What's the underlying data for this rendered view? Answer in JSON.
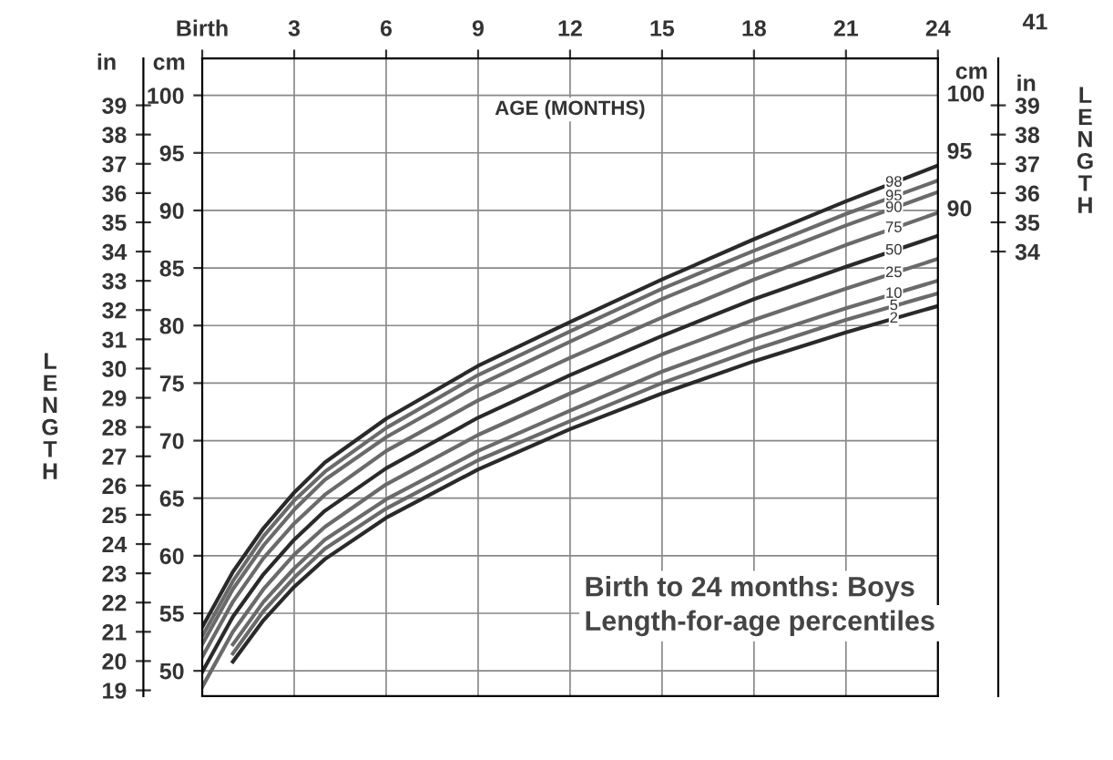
{
  "chart_data": {
    "type": "line",
    "title": "Birth to 24 months: Boys",
    "subtitle": "Length-for-age percentiles",
    "xlabel": "AGE (MONTHS)",
    "ylabel": "cm",
    "y2label": "in",
    "y3label": "in",
    "annotations": [
      "LENGTH",
      "LENGTH",
      "41",
      "cm",
      "100",
      "95",
      "90"
    ],
    "x": [
      0,
      1,
      2,
      3,
      4,
      6,
      9,
      12,
      15,
      18,
      21,
      24
    ],
    "xlim": [
      0,
      24
    ],
    "xticks": [
      {
        "value": 0,
        "label": "Birth"
      },
      3,
      6,
      9,
      12,
      15,
      18,
      21,
      24
    ],
    "ylim": [
      47.8,
      103.2
    ],
    "yticks": [
      50,
      55,
      60,
      65,
      70,
      75,
      80,
      85,
      90,
      95,
      100
    ],
    "y2lim": [
      18.8,
      40.6
    ],
    "y2ticks": [
      19,
      20,
      21,
      22,
      23,
      24,
      25,
      26,
      27,
      28,
      29,
      30,
      31,
      32,
      33,
      34,
      35,
      36,
      37,
      38,
      39
    ],
    "y3lim": [
      18.8,
      40.6
    ],
    "y3ticks": [
      34,
      35,
      36,
      37,
      38,
      39
    ],
    "grid": true,
    "legend": false,
    "marker": "none",
    "line_style": "solid",
    "series": [
      {
        "name": "98",
        "color": "#2a2a2a",
        "values": [
          53.8,
          58.6,
          62.4,
          65.5,
          68.1,
          71.9,
          76.5,
          80.3,
          84.0,
          87.5,
          90.8,
          93.9
        ]
      },
      {
        "name": "95",
        "color": "#6a6a6a",
        "values": [
          53.0,
          57.8,
          61.7,
          64.8,
          67.3,
          71.1,
          75.7,
          79.5,
          83.2,
          86.5,
          89.7,
          92.6
        ]
      },
      {
        "name": "90",
        "color": "#6a6a6a",
        "values": [
          52.3,
          57.1,
          60.9,
          64.0,
          66.6,
          70.3,
          74.8,
          78.6,
          82.3,
          85.6,
          88.7,
          91.6
        ]
      },
      {
        "name": "75",
        "color": "#6a6a6a",
        "values": [
          51.2,
          56.0,
          59.8,
          62.8,
          65.3,
          69.1,
          73.5,
          77.2,
          80.7,
          84.0,
          87.0,
          89.8
        ]
      },
      {
        "name": "50",
        "color": "#2a2a2a",
        "values": [
          49.9,
          54.7,
          58.4,
          61.4,
          63.9,
          67.6,
          72.0,
          75.7,
          79.1,
          82.3,
          85.1,
          87.8
        ]
      },
      {
        "name": "25",
        "color": "#6a6a6a",
        "values": [
          48.6,
          53.4,
          57.1,
          60.1,
          62.5,
          66.2,
          70.5,
          74.1,
          77.5,
          80.5,
          83.2,
          85.8
        ]
      },
      {
        "name": "10",
        "color": "#6a6a6a",
        "values": [
          null,
          52.3,
          56.0,
          58.9,
          61.4,
          64.9,
          69.1,
          72.6,
          76.0,
          78.9,
          81.5,
          83.9
        ]
      },
      {
        "name": "5",
        "color": "#6a6a6a",
        "values": [
          null,
          51.5,
          55.2,
          58.1,
          60.6,
          64.1,
          68.3,
          71.7,
          75.0,
          77.9,
          80.5,
          82.8
        ]
      },
      {
        "name": "2",
        "color": "#2a2a2a",
        "values": [
          null,
          50.8,
          54.4,
          57.3,
          59.7,
          63.3,
          67.5,
          71.0,
          74.1,
          76.9,
          79.4,
          81.7
        ]
      }
    ]
  }
}
